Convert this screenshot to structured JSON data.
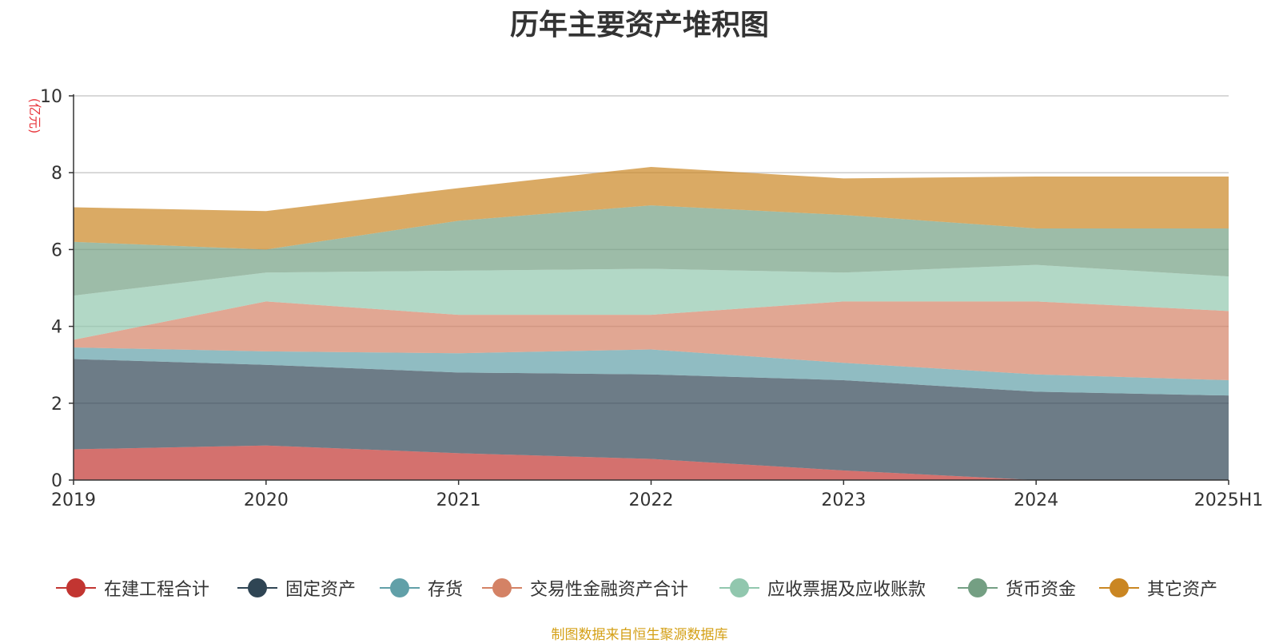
{
  "page": {
    "title": "历年主要资产堆积图",
    "footer_note": "制图数据来自恒生聚源数据库"
  },
  "chart_data": {
    "type": "area",
    "stacked": true,
    "title": "历年主要资产堆积图",
    "ylabel": "(亿元)",
    "xlabel": "",
    "ylim": [
      0,
      10
    ],
    "yticks": [
      0,
      2,
      4,
      6,
      8,
      10
    ],
    "grid": true,
    "legend_position": "bottom",
    "categories": [
      "2019",
      "2020",
      "2021",
      "2022",
      "2023",
      "2024",
      "2025H1"
    ],
    "series": [
      {
        "name": "在建工程合计",
        "color": "#c23531",
        "values": [
          0.8,
          0.9,
          0.7,
          0.55,
          0.25,
          0.0,
          0.0
        ]
      },
      {
        "name": "固定资产",
        "color": "#2f4554",
        "values": [
          2.35,
          2.1,
          2.1,
          2.2,
          2.35,
          2.3,
          2.2
        ]
      },
      {
        "name": "存货",
        "color": "#61a0a8",
        "values": [
          0.3,
          0.35,
          0.5,
          0.65,
          0.45,
          0.45,
          0.4
        ]
      },
      {
        "name": "交易性金融资产合计",
        "color": "#d48265",
        "values": [
          0.2,
          1.3,
          1.0,
          0.9,
          1.6,
          1.9,
          1.8
        ]
      },
      {
        "name": "应收票据及应收账款",
        "color": "#91c7ae",
        "values": [
          1.15,
          0.75,
          1.15,
          1.2,
          0.75,
          0.95,
          0.9
        ]
      },
      {
        "name": "货币资金",
        "color": "#749f83",
        "values": [
          1.4,
          0.6,
          1.3,
          1.65,
          1.5,
          0.95,
          1.25
        ]
      },
      {
        "name": "其它资产",
        "color": "#ca8622",
        "values": [
          0.9,
          1.0,
          0.85,
          1.0,
          0.95,
          1.35,
          1.35
        ]
      }
    ]
  }
}
